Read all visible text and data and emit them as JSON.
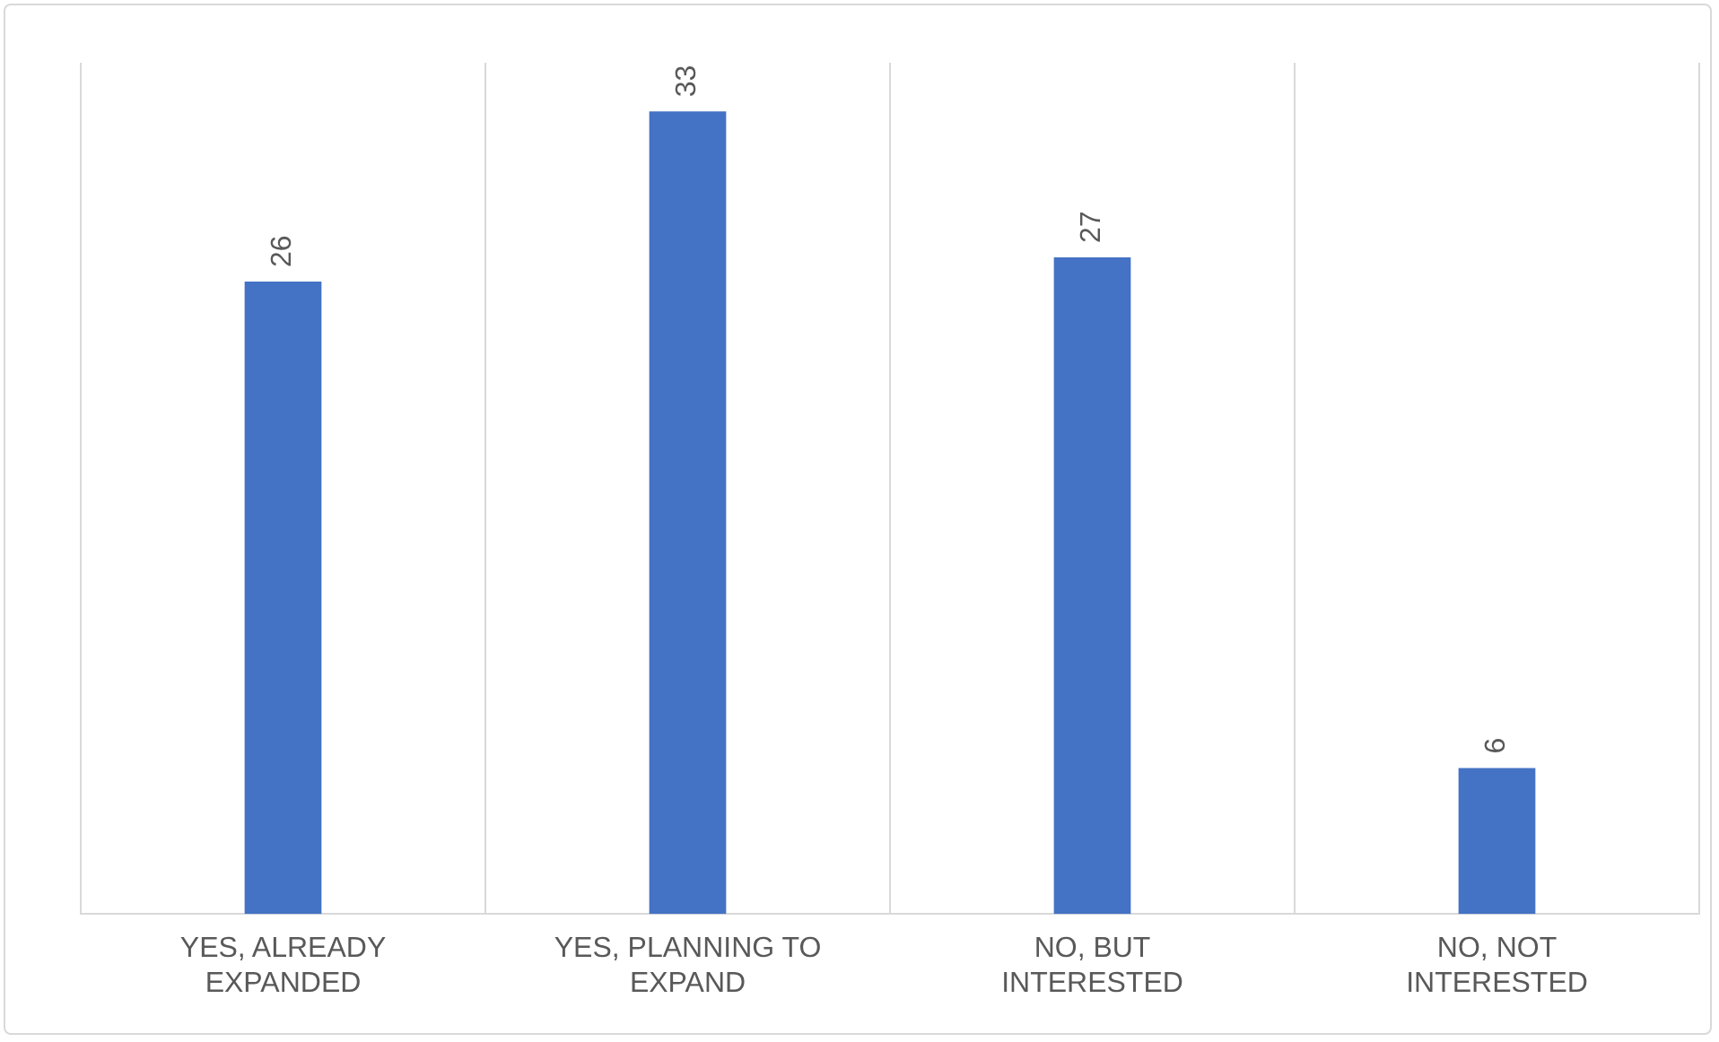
{
  "chart_data": {
    "type": "bar",
    "categories": [
      "YES, ALREADY EXPANDED",
      "YES, PLANNING TO EXPAND",
      "NO, BUT INTERESTED",
      "NO, NOT INTERESTED"
    ],
    "values": [
      26,
      33,
      27,
      6
    ],
    "color": "#4472c4",
    "ylim": [
      0,
      35
    ],
    "grid": "x",
    "data_labels": true,
    "tick_labels": "x"
  }
}
